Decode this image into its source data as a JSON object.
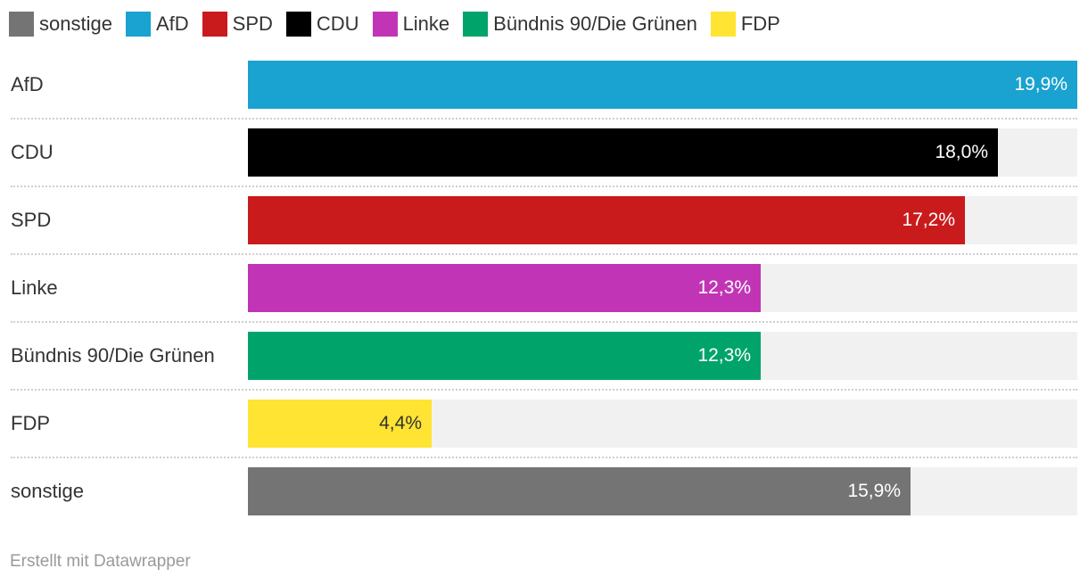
{
  "chart_data": {
    "type": "bar",
    "orientation": "horizontal",
    "categories": [
      "AfD",
      "CDU",
      "SPD",
      "Linke",
      "Bündnis 90/Die Grünen",
      "FDP",
      "sonstige"
    ],
    "values": [
      19.9,
      18.0,
      17.2,
      12.3,
      12.3,
      4.4,
      15.9
    ],
    "value_labels": [
      "19,9%",
      "18,0%",
      "17,2%",
      "12,3%",
      "12,3%",
      "4,4%",
      "15,9%"
    ],
    "colors": [
      "#1aa2d0",
      "#000000",
      "#c91b1c",
      "#c234b6",
      "#00a46a",
      "#ffe433",
      "#747474"
    ],
    "label_colors": [
      "#ffffff",
      "#ffffff",
      "#ffffff",
      "#ffffff",
      "#ffffff",
      "#333333",
      "#ffffff"
    ],
    "xlim": [
      0,
      19.9
    ],
    "legend": [
      {
        "label": "sonstige",
        "color": "#747474"
      },
      {
        "label": "AfD",
        "color": "#1aa2d0"
      },
      {
        "label": "SPD",
        "color": "#c91b1c"
      },
      {
        "label": "CDU",
        "color": "#000000"
      },
      {
        "label": "Linke",
        "color": "#c234b6"
      },
      {
        "label": "Bündnis 90/Die Grünen",
        "color": "#00a46a"
      },
      {
        "label": "FDP",
        "color": "#ffe433"
      }
    ],
    "legend_position": "top-left",
    "credit": "Erstellt mit Datawrapper"
  }
}
